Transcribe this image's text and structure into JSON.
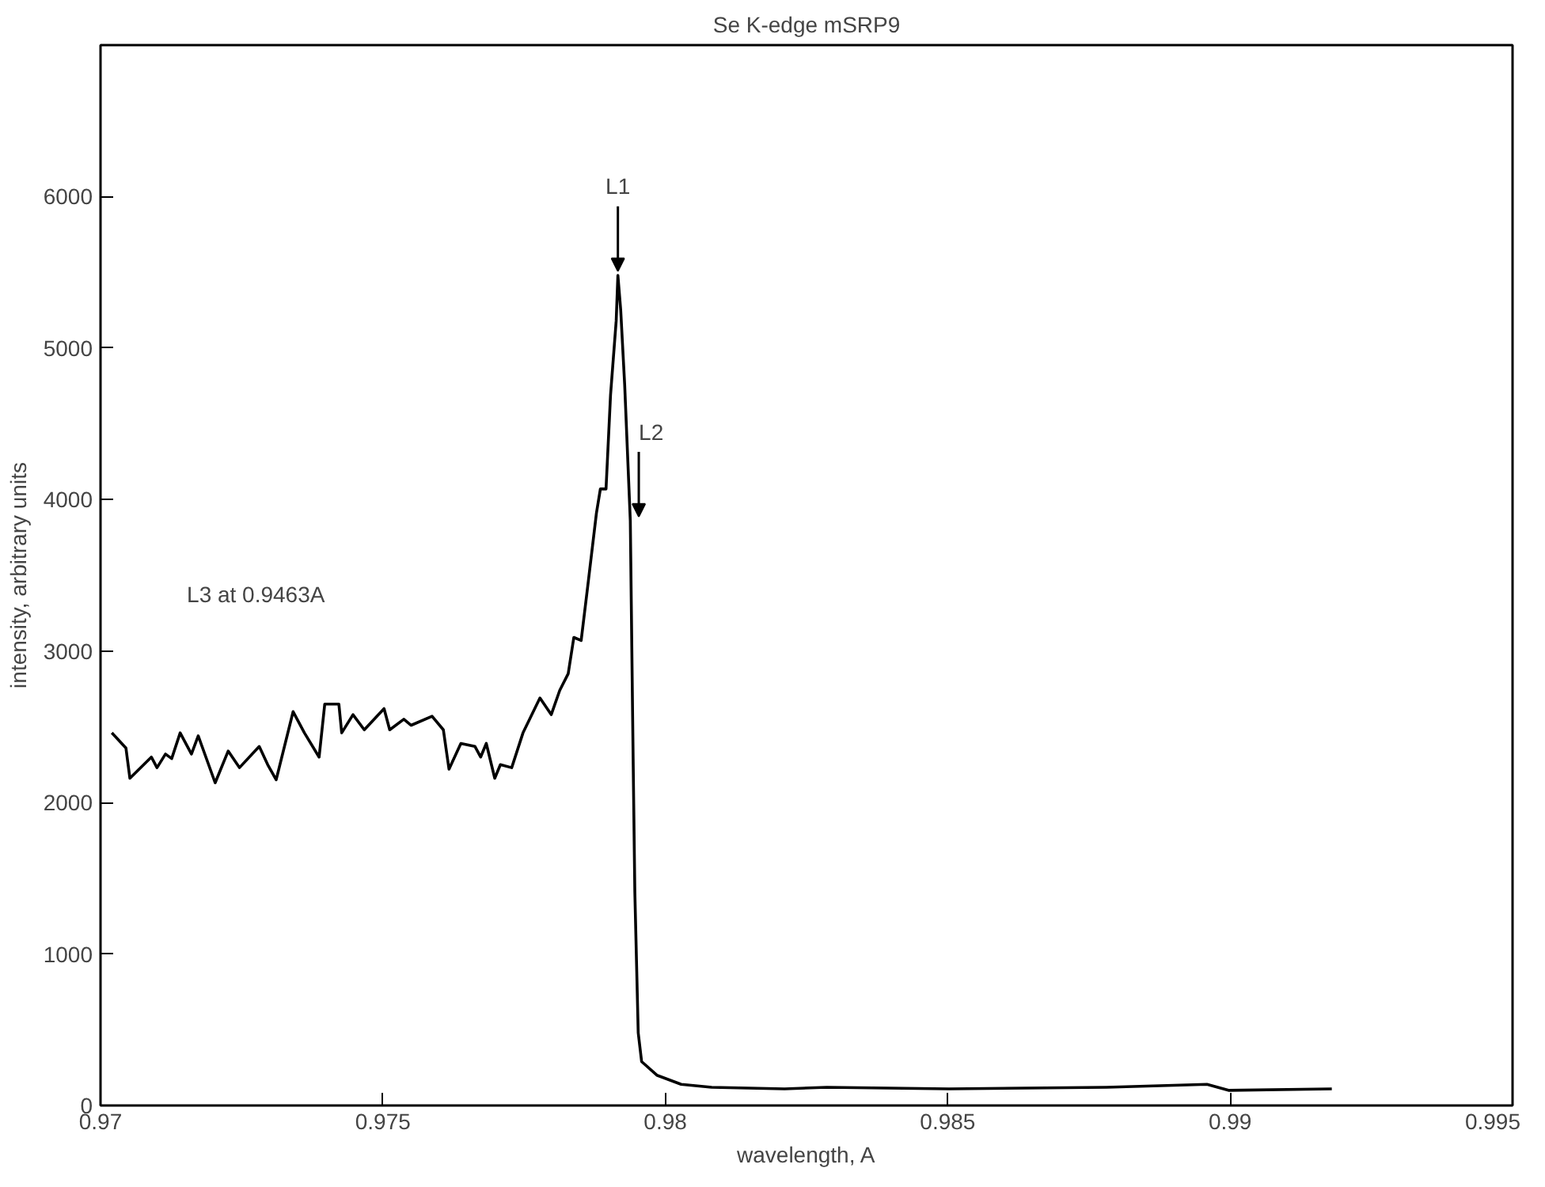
{
  "chart_data": {
    "type": "line",
    "title": "Se K-edge mSRP9",
    "xlabel": "wavelength, A",
    "ylabel": "intensity, arbitrary units",
    "xlim": [
      0.97,
      0.995
    ],
    "xticks": [
      0.97,
      0.975,
      0.98,
      0.985,
      0.99,
      0.995
    ],
    "ylim": [
      0,
      7000
    ],
    "yticks": [
      0,
      1000,
      2000,
      3000,
      4000,
      5000,
      6000
    ],
    "grid": false,
    "line_style": "solid",
    "annotations": [
      {
        "text": "L1",
        "x": 0.97916,
        "y": 5480
      },
      {
        "text": "L2",
        "x": 0.97938,
        "y": 3860
      },
      "L3 at 0.9463A"
    ],
    "series": [
      {
        "color": "#000000",
        "x": [
          0.9702,
          0.97045,
          0.97052,
          0.9709,
          0.971,
          0.97115,
          0.97126,
          0.97141,
          0.97161,
          0.97173,
          0.97203,
          0.97226,
          0.97246,
          0.97281,
          0.97296,
          0.97311,
          0.97341,
          0.97361,
          0.97387,
          0.97397,
          0.97422,
          0.97427,
          0.97447,
          0.97467,
          0.97502,
          0.97512,
          0.97537,
          0.9755,
          0.97587,
          0.97607,
          0.97617,
          0.97638,
          0.97663,
          0.97673,
          0.97683,
          0.97698,
          0.97708,
          0.97728,
          0.97748,
          0.97778,
          0.97798,
          0.97813,
          0.97828,
          0.97838,
          0.97851,
          0.97863,
          0.97878,
          0.97885,
          0.97895,
          0.97903,
          0.97913,
          0.97916,
          0.97921,
          0.97928,
          0.97938,
          0.97943,
          0.97946,
          0.97952,
          0.97958,
          0.97985,
          0.98028,
          0.98082,
          0.98211,
          0.98286,
          0.98502,
          0.98781,
          0.98959,
          0.98997,
          0.9918
        ],
        "values": [
          2460,
          2360,
          2160,
          2300,
          2230,
          2320,
          2290,
          2460,
          2320,
          2440,
          2130,
          2340,
          2230,
          2370,
          2250,
          2150,
          2600,
          2460,
          2300,
          2650,
          2650,
          2460,
          2580,
          2480,
          2620,
          2480,
          2550,
          2510,
          2570,
          2480,
          2220,
          2390,
          2370,
          2300,
          2390,
          2160,
          2250,
          2230,
          2460,
          2690,
          2580,
          2740,
          2850,
          3090,
          3070,
          3440,
          3910,
          4070,
          4070,
          4690,
          5180,
          5480,
          5250,
          4760,
          3860,
          2290,
          1410,
          480,
          290,
          200,
          140,
          120,
          110,
          120,
          110,
          120,
          140,
          100,
          110
        ]
      }
    ]
  }
}
